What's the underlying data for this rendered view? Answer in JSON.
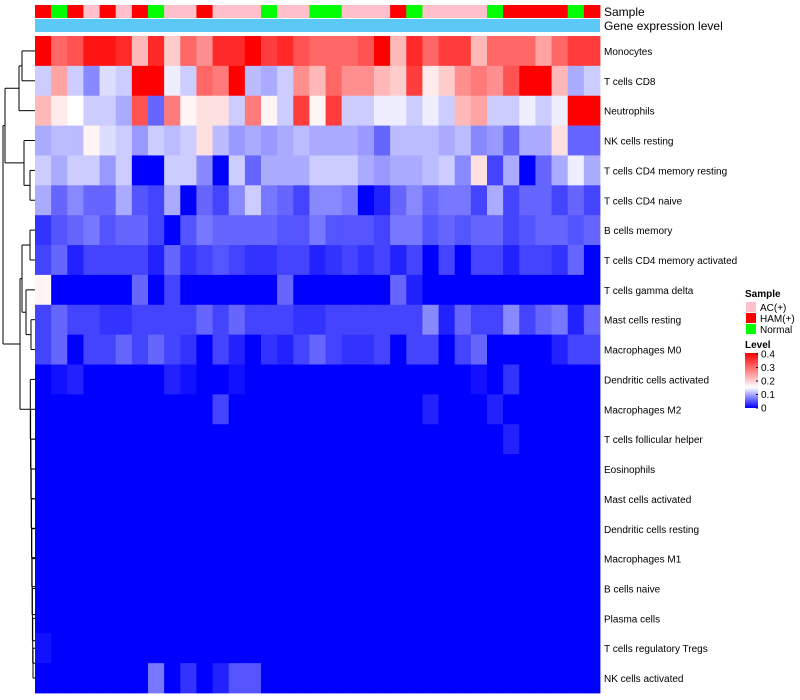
{
  "chart_data": {
    "type": "heatmap",
    "title": "",
    "annotation_labels": [
      "Sample",
      "Gene expression level"
    ],
    "legend": {
      "sample_title": "Sample",
      "sample_groups": [
        {
          "name": "AC(+)",
          "color": "#FFC0CB"
        },
        {
          "name": "HAM(+)",
          "color": "#FF0000"
        },
        {
          "name": "Normal",
          "color": "#00FF00"
        }
      ],
      "level_title": "Level",
      "level_ticks": [
        "0.4",
        "0.3",
        "0.2",
        "0.1",
        "0"
      ]
    },
    "colors": {
      "low": "#0000FF",
      "mid": "#FFFFFF",
      "high": "#FF0000",
      "expression_bar": "#5BC8F5",
      "dendrogram": "#000000"
    },
    "scale": {
      "min": 0,
      "mid": 0.15,
      "max": 0.4
    },
    "sample_groups_per_column": [
      "HAM(+)",
      "Normal",
      "HAM(+)",
      "AC(+)",
      "HAM(+)",
      "AC(+)",
      "HAM(+)",
      "Normal",
      "AC(+)",
      "AC(+)",
      "HAM(+)",
      "AC(+)",
      "AC(+)",
      "AC(+)",
      "Normal",
      "AC(+)",
      "AC(+)",
      "Normal",
      "Normal",
      "AC(+)",
      "AC(+)",
      "AC(+)",
      "HAM(+)",
      "Normal",
      "AC(+)",
      "AC(+)",
      "AC(+)",
      "AC(+)",
      "Normal",
      "HAM(+)",
      "HAM(+)",
      "HAM(+)",
      "HAM(+)",
      "Normal",
      "HAM(+)"
    ],
    "rows": [
      "Monocytes",
      "T cells CD8",
      "Neutrophils",
      "NK cells resting",
      "T cells CD4 memory resting",
      "T cells CD4 naive",
      "B cells memory",
      "T cells CD4 memory activated",
      "T cells gamma delta",
      "Mast cells resting",
      "Macrophages M0",
      "Dendritic cells activated",
      "Macrophages M2",
      "T cells follicular helper",
      "Eosinophils",
      "Mast cells activated",
      "Dendritic cells resting",
      "Macrophages M1",
      "B cells naive",
      "Plasma cells",
      "T cells regulatory  Tregs",
      "NK cells activated"
    ],
    "values": [
      [
        0.4,
        0.3,
        0.32,
        0.38,
        0.38,
        0.36,
        0.22,
        0.36,
        0.2,
        0.3,
        0.26,
        0.36,
        0.36,
        0.4,
        0.34,
        0.36,
        0.32,
        0.3,
        0.3,
        0.3,
        0.32,
        0.4,
        0.22,
        0.36,
        0.3,
        0.34,
        0.34,
        0.22,
        0.3,
        0.3,
        0.3,
        0.24,
        0.3,
        0.34,
        0.34
      ],
      [
        0.12,
        0.24,
        0.12,
        0.08,
        0.13,
        0.12,
        0.4,
        0.4,
        0.14,
        0.12,
        0.3,
        0.28,
        0.4,
        0.11,
        0.1,
        0.12,
        0.26,
        0.22,
        0.3,
        0.26,
        0.26,
        0.22,
        0.2,
        0.34,
        0.17,
        0.2,
        0.26,
        0.28,
        0.26,
        0.32,
        0.4,
        0.4,
        0.22,
        0.1,
        0.12
      ],
      [
        0.22,
        0.17,
        0.15,
        0.12,
        0.12,
        0.1,
        0.32,
        0.06,
        0.28,
        0.16,
        0.18,
        0.18,
        0.12,
        0.28,
        0.16,
        0.12,
        0.34,
        0.16,
        0.34,
        0.12,
        0.12,
        0.14,
        0.14,
        0.12,
        0.14,
        0.12,
        0.22,
        0.24,
        0.12,
        0.12,
        0.14,
        0.12,
        0.14,
        0.4,
        0.4
      ],
      [
        0.1,
        0.11,
        0.11,
        0.16,
        0.13,
        0.12,
        0.09,
        0.12,
        0.11,
        0.12,
        0.18,
        0.11,
        0.09,
        0.1,
        0.09,
        0.1,
        0.11,
        0.1,
        0.1,
        0.1,
        0.09,
        0.06,
        0.11,
        0.11,
        0.11,
        0.1,
        0.11,
        0.08,
        0.09,
        0.06,
        0.1,
        0.1,
        0.18,
        0.06,
        0.06
      ],
      [
        0.12,
        0.1,
        0.12,
        0.12,
        0.09,
        0.12,
        0.0,
        0.0,
        0.12,
        0.12,
        0.08,
        0.0,
        0.12,
        0.06,
        0.1,
        0.1,
        0.1,
        0.12,
        0.12,
        0.12,
        0.1,
        0.09,
        0.1,
        0.1,
        0.11,
        0.12,
        0.08,
        0.18,
        0.04,
        0.1,
        0.0,
        0.06,
        0.1,
        0.14,
        0.1
      ],
      [
        0.1,
        0.06,
        0.08,
        0.06,
        0.06,
        0.1,
        0.05,
        0.04,
        0.1,
        0.0,
        0.06,
        0.04,
        0.08,
        0.12,
        0.07,
        0.06,
        0.04,
        0.08,
        0.08,
        0.07,
        0.0,
        0.02,
        0.06,
        0.08,
        0.06,
        0.07,
        0.07,
        0.04,
        0.1,
        0.04,
        0.06,
        0.06,
        0.04,
        0.06,
        0.04
      ],
      [
        0.03,
        0.05,
        0.06,
        0.07,
        0.05,
        0.06,
        0.06,
        0.04,
        0.0,
        0.05,
        0.07,
        0.06,
        0.06,
        0.06,
        0.06,
        0.05,
        0.05,
        0.07,
        0.05,
        0.05,
        0.05,
        0.04,
        0.07,
        0.07,
        0.05,
        0.06,
        0.05,
        0.06,
        0.06,
        0.04,
        0.05,
        0.06,
        0.06,
        0.05,
        0.06
      ],
      [
        0.04,
        0.06,
        0.02,
        0.04,
        0.04,
        0.04,
        0.04,
        0.02,
        0.06,
        0.03,
        0.04,
        0.05,
        0.04,
        0.03,
        0.03,
        0.04,
        0.04,
        0.02,
        0.03,
        0.04,
        0.03,
        0.04,
        0.02,
        0.04,
        0.0,
        0.04,
        0.0,
        0.04,
        0.04,
        0.02,
        0.04,
        0.04,
        0.03,
        0.06,
        0.0
      ],
      [
        0.16,
        0.0,
        0.0,
        0.0,
        0.0,
        0.0,
        0.06,
        0.0,
        0.04,
        0.0,
        0.0,
        0.0,
        0.0,
        0.0,
        0.0,
        0.06,
        0.0,
        0.0,
        0.0,
        0.0,
        0.0,
        0.0,
        0.06,
        0.02,
        0.0,
        0.0,
        0.0,
        0.0,
        0.0,
        0.0,
        0.0,
        0.0,
        0.0,
        0.0,
        0.0
      ],
      [
        0.04,
        0.06,
        0.04,
        0.04,
        0.03,
        0.03,
        0.04,
        0.04,
        0.04,
        0.04,
        0.06,
        0.04,
        0.06,
        0.04,
        0.04,
        0.04,
        0.03,
        0.03,
        0.04,
        0.04,
        0.04,
        0.04,
        0.04,
        0.04,
        0.08,
        0.02,
        0.06,
        0.04,
        0.04,
        0.08,
        0.04,
        0.06,
        0.07,
        0.02,
        0.06
      ],
      [
        0.04,
        0.06,
        0.0,
        0.04,
        0.04,
        0.06,
        0.04,
        0.06,
        0.04,
        0.03,
        0.0,
        0.04,
        0.02,
        0.0,
        0.03,
        0.02,
        0.04,
        0.06,
        0.04,
        0.03,
        0.03,
        0.04,
        0.0,
        0.04,
        0.04,
        0.0,
        0.04,
        0.06,
        0.0,
        0.0,
        0.0,
        0.0,
        0.02,
        0.04,
        0.04
      ],
      [
        0.0,
        0.01,
        0.02,
        0.0,
        0.0,
        0.0,
        0.0,
        0.0,
        0.02,
        0.01,
        0.0,
        0.0,
        0.01,
        0.0,
        0.0,
        0.0,
        0.0,
        0.0,
        0.0,
        0.0,
        0.0,
        0.0,
        0.0,
        0.0,
        0.0,
        0.0,
        0.0,
        0.01,
        0.0,
        0.03,
        0.0,
        0.0,
        0.0,
        0.0,
        0.0
      ],
      [
        0.0,
        0.0,
        0.0,
        0.0,
        0.0,
        0.0,
        0.0,
        0.0,
        0.0,
        0.0,
        0.0,
        0.04,
        0.0,
        0.0,
        0.0,
        0.0,
        0.0,
        0.0,
        0.0,
        0.0,
        0.0,
        0.0,
        0.0,
        0.0,
        0.02,
        0.0,
        0.0,
        0.0,
        0.02,
        0.0,
        0.0,
        0.0,
        0.0,
        0.0,
        0.0
      ],
      [
        0.0,
        0.0,
        0.0,
        0.0,
        0.0,
        0.0,
        0.0,
        0.0,
        0.0,
        0.0,
        0.0,
        0.0,
        0.0,
        0.0,
        0.0,
        0.0,
        0.0,
        0.0,
        0.0,
        0.0,
        0.0,
        0.0,
        0.0,
        0.0,
        0.0,
        0.0,
        0.0,
        0.0,
        0.0,
        0.02,
        0.0,
        0.0,
        0.0,
        0.0,
        0.0
      ],
      [
        0.0,
        0.0,
        0.0,
        0.0,
        0.0,
        0.0,
        0.0,
        0.0,
        0.0,
        0.0,
        0.0,
        0.0,
        0.0,
        0.0,
        0.0,
        0.0,
        0.0,
        0.0,
        0.0,
        0.0,
        0.0,
        0.0,
        0.0,
        0.0,
        0.0,
        0.0,
        0.0,
        0.0,
        0.0,
        0.0,
        0.0,
        0.0,
        0.0,
        0.0,
        0.0
      ],
      [
        0.0,
        0.0,
        0.0,
        0.0,
        0.0,
        0.0,
        0.0,
        0.0,
        0.0,
        0.0,
        0.0,
        0.0,
        0.0,
        0.0,
        0.0,
        0.0,
        0.0,
        0.0,
        0.0,
        0.0,
        0.0,
        0.0,
        0.0,
        0.0,
        0.0,
        0.0,
        0.0,
        0.0,
        0.0,
        0.0,
        0.0,
        0.0,
        0.0,
        0.0,
        0.0
      ],
      [
        0.0,
        0.0,
        0.0,
        0.0,
        0.0,
        0.0,
        0.0,
        0.0,
        0.0,
        0.0,
        0.0,
        0.0,
        0.0,
        0.0,
        0.0,
        0.0,
        0.0,
        0.0,
        0.0,
        0.0,
        0.0,
        0.0,
        0.0,
        0.0,
        0.0,
        0.0,
        0.0,
        0.0,
        0.0,
        0.0,
        0.0,
        0.0,
        0.0,
        0.0,
        0.0
      ],
      [
        0.0,
        0.0,
        0.0,
        0.0,
        0.0,
        0.0,
        0.0,
        0.0,
        0.0,
        0.0,
        0.0,
        0.0,
        0.0,
        0.0,
        0.0,
        0.0,
        0.0,
        0.0,
        0.0,
        0.0,
        0.0,
        0.0,
        0.0,
        0.0,
        0.0,
        0.0,
        0.0,
        0.0,
        0.0,
        0.0,
        0.0,
        0.0,
        0.0,
        0.0,
        0.0
      ],
      [
        0.0,
        0.0,
        0.0,
        0.0,
        0.0,
        0.0,
        0.0,
        0.0,
        0.0,
        0.0,
        0.0,
        0.0,
        0.0,
        0.0,
        0.0,
        0.0,
        0.0,
        0.0,
        0.0,
        0.0,
        0.0,
        0.0,
        0.0,
        0.0,
        0.0,
        0.0,
        0.0,
        0.0,
        0.0,
        0.0,
        0.0,
        0.0,
        0.0,
        0.0,
        0.0
      ],
      [
        0.0,
        0.0,
        0.0,
        0.0,
        0.0,
        0.0,
        0.0,
        0.0,
        0.0,
        0.0,
        0.0,
        0.0,
        0.0,
        0.0,
        0.0,
        0.0,
        0.0,
        0.0,
        0.0,
        0.0,
        0.0,
        0.0,
        0.0,
        0.0,
        0.0,
        0.0,
        0.0,
        0.0,
        0.0,
        0.0,
        0.0,
        0.0,
        0.0,
        0.0,
        0.0
      ],
      [
        0.01,
        0.0,
        0.0,
        0.0,
        0.0,
        0.0,
        0.0,
        0.0,
        0.0,
        0.0,
        0.0,
        0.0,
        0.0,
        0.0,
        0.0,
        0.0,
        0.0,
        0.0,
        0.0,
        0.0,
        0.0,
        0.0,
        0.0,
        0.0,
        0.0,
        0.0,
        0.0,
        0.0,
        0.0,
        0.0,
        0.0,
        0.0,
        0.0,
        0.0,
        0.0
      ],
      [
        0.0,
        0.0,
        0.0,
        0.0,
        0.0,
        0.0,
        0.0,
        0.07,
        0.0,
        0.03,
        0.0,
        0.02,
        0.05,
        0.05,
        0.0,
        0.0,
        0.0,
        0.0,
        0.0,
        0.0,
        0.0,
        0.0,
        0.0,
        0.0,
        0.0,
        0.0,
        0.0,
        0.0,
        0.0,
        0.0,
        0.0,
        0.0,
        0.0,
        0.0,
        0.0
      ]
    ]
  }
}
